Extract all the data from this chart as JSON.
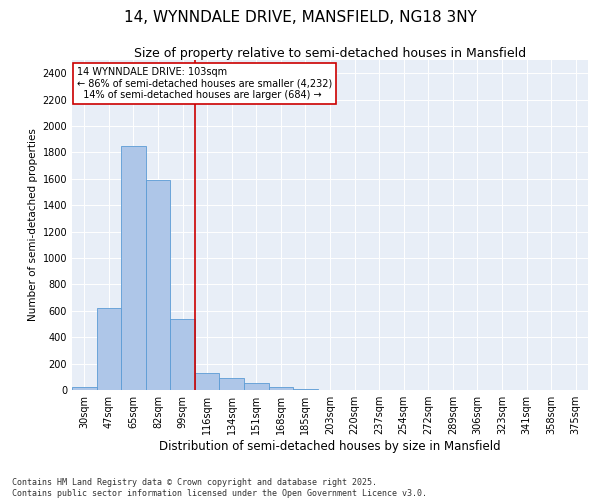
{
  "title1": "14, WYNNDALE DRIVE, MANSFIELD, NG18 3NY",
  "title2": "Size of property relative to semi-detached houses in Mansfield",
  "xlabel": "Distribution of semi-detached houses by size in Mansfield",
  "ylabel": "Number of semi-detached properties",
  "categories": [
    "30sqm",
    "47sqm",
    "65sqm",
    "82sqm",
    "99sqm",
    "116sqm",
    "134sqm",
    "151sqm",
    "168sqm",
    "185sqm",
    "203sqm",
    "220sqm",
    "237sqm",
    "254sqm",
    "272sqm",
    "289sqm",
    "306sqm",
    "323sqm",
    "341sqm",
    "358sqm",
    "375sqm"
  ],
  "values": [
    25,
    620,
    1850,
    1590,
    540,
    130,
    90,
    50,
    25,
    10,
    0,
    0,
    0,
    0,
    0,
    0,
    0,
    0,
    0,
    0,
    0
  ],
  "bar_color": "#aec6e8",
  "bar_edge_color": "#5b9bd5",
  "property_line_x": 4.5,
  "annotation_text": "14 WYNNDALE DRIVE: 103sqm\n← 86% of semi-detached houses are smaller (4,232)\n  14% of semi-detached houses are larger (684) →",
  "annotation_box_color": "#ffffff",
  "annotation_box_edge_color": "#cc0000",
  "vline_color": "#cc0000",
  "ylim": [
    0,
    2500
  ],
  "yticks": [
    0,
    200,
    400,
    600,
    800,
    1000,
    1200,
    1400,
    1600,
    1800,
    2000,
    2200,
    2400
  ],
  "background_color": "#e8eef7",
  "footer": "Contains HM Land Registry data © Crown copyright and database right 2025.\nContains public sector information licensed under the Open Government Licence v3.0.",
  "title1_fontsize": 11,
  "title2_fontsize": 9,
  "xlabel_fontsize": 8.5,
  "ylabel_fontsize": 7.5,
  "tick_fontsize": 7,
  "footer_fontsize": 6
}
